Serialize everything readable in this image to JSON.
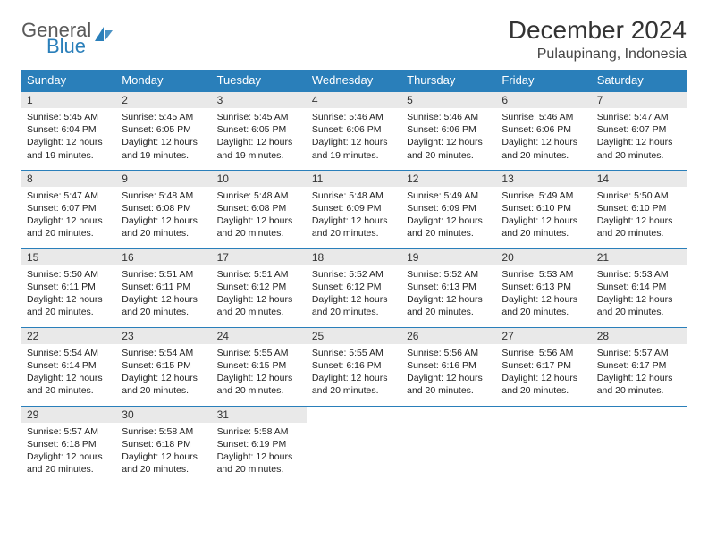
{
  "logo": {
    "word1": "General",
    "word2": "Blue",
    "color_general": "#5a5a5a",
    "color_blue": "#2a7fba"
  },
  "title": "December 2024",
  "location": "Pulaupinang, Indonesia",
  "colors": {
    "header_bg": "#2a7fba",
    "header_text": "#ffffff",
    "daynum_bg": "#e9e9e9",
    "border": "#2a7fba",
    "page_bg": "#ffffff"
  },
  "weekdays": [
    "Sunday",
    "Monday",
    "Tuesday",
    "Wednesday",
    "Thursday",
    "Friday",
    "Saturday"
  ],
  "weeks": [
    [
      {
        "n": "1",
        "sr": "5:45 AM",
        "ss": "6:04 PM",
        "dl": "12 hours and 19 minutes."
      },
      {
        "n": "2",
        "sr": "5:45 AM",
        "ss": "6:05 PM",
        "dl": "12 hours and 19 minutes."
      },
      {
        "n": "3",
        "sr": "5:45 AM",
        "ss": "6:05 PM",
        "dl": "12 hours and 19 minutes."
      },
      {
        "n": "4",
        "sr": "5:46 AM",
        "ss": "6:06 PM",
        "dl": "12 hours and 19 minutes."
      },
      {
        "n": "5",
        "sr": "5:46 AM",
        "ss": "6:06 PM",
        "dl": "12 hours and 20 minutes."
      },
      {
        "n": "6",
        "sr": "5:46 AM",
        "ss": "6:06 PM",
        "dl": "12 hours and 20 minutes."
      },
      {
        "n": "7",
        "sr": "5:47 AM",
        "ss": "6:07 PM",
        "dl": "12 hours and 20 minutes."
      }
    ],
    [
      {
        "n": "8",
        "sr": "5:47 AM",
        "ss": "6:07 PM",
        "dl": "12 hours and 20 minutes."
      },
      {
        "n": "9",
        "sr": "5:48 AM",
        "ss": "6:08 PM",
        "dl": "12 hours and 20 minutes."
      },
      {
        "n": "10",
        "sr": "5:48 AM",
        "ss": "6:08 PM",
        "dl": "12 hours and 20 minutes."
      },
      {
        "n": "11",
        "sr": "5:48 AM",
        "ss": "6:09 PM",
        "dl": "12 hours and 20 minutes."
      },
      {
        "n": "12",
        "sr": "5:49 AM",
        "ss": "6:09 PM",
        "dl": "12 hours and 20 minutes."
      },
      {
        "n": "13",
        "sr": "5:49 AM",
        "ss": "6:10 PM",
        "dl": "12 hours and 20 minutes."
      },
      {
        "n": "14",
        "sr": "5:50 AM",
        "ss": "6:10 PM",
        "dl": "12 hours and 20 minutes."
      }
    ],
    [
      {
        "n": "15",
        "sr": "5:50 AM",
        "ss": "6:11 PM",
        "dl": "12 hours and 20 minutes."
      },
      {
        "n": "16",
        "sr": "5:51 AM",
        "ss": "6:11 PM",
        "dl": "12 hours and 20 minutes."
      },
      {
        "n": "17",
        "sr": "5:51 AM",
        "ss": "6:12 PM",
        "dl": "12 hours and 20 minutes."
      },
      {
        "n": "18",
        "sr": "5:52 AM",
        "ss": "6:12 PM",
        "dl": "12 hours and 20 minutes."
      },
      {
        "n": "19",
        "sr": "5:52 AM",
        "ss": "6:13 PM",
        "dl": "12 hours and 20 minutes."
      },
      {
        "n": "20",
        "sr": "5:53 AM",
        "ss": "6:13 PM",
        "dl": "12 hours and 20 minutes."
      },
      {
        "n": "21",
        "sr": "5:53 AM",
        "ss": "6:14 PM",
        "dl": "12 hours and 20 minutes."
      }
    ],
    [
      {
        "n": "22",
        "sr": "5:54 AM",
        "ss": "6:14 PM",
        "dl": "12 hours and 20 minutes."
      },
      {
        "n": "23",
        "sr": "5:54 AM",
        "ss": "6:15 PM",
        "dl": "12 hours and 20 minutes."
      },
      {
        "n": "24",
        "sr": "5:55 AM",
        "ss": "6:15 PM",
        "dl": "12 hours and 20 minutes."
      },
      {
        "n": "25",
        "sr": "5:55 AM",
        "ss": "6:16 PM",
        "dl": "12 hours and 20 minutes."
      },
      {
        "n": "26",
        "sr": "5:56 AM",
        "ss": "6:16 PM",
        "dl": "12 hours and 20 minutes."
      },
      {
        "n": "27",
        "sr": "5:56 AM",
        "ss": "6:17 PM",
        "dl": "12 hours and 20 minutes."
      },
      {
        "n": "28",
        "sr": "5:57 AM",
        "ss": "6:17 PM",
        "dl": "12 hours and 20 minutes."
      }
    ],
    [
      {
        "n": "29",
        "sr": "5:57 AM",
        "ss": "6:18 PM",
        "dl": "12 hours and 20 minutes."
      },
      {
        "n": "30",
        "sr": "5:58 AM",
        "ss": "6:18 PM",
        "dl": "12 hours and 20 minutes."
      },
      {
        "n": "31",
        "sr": "5:58 AM",
        "ss": "6:19 PM",
        "dl": "12 hours and 20 minutes."
      },
      null,
      null,
      null,
      null
    ]
  ],
  "labels": {
    "sunrise": "Sunrise:",
    "sunset": "Sunset:",
    "daylight": "Daylight:"
  }
}
